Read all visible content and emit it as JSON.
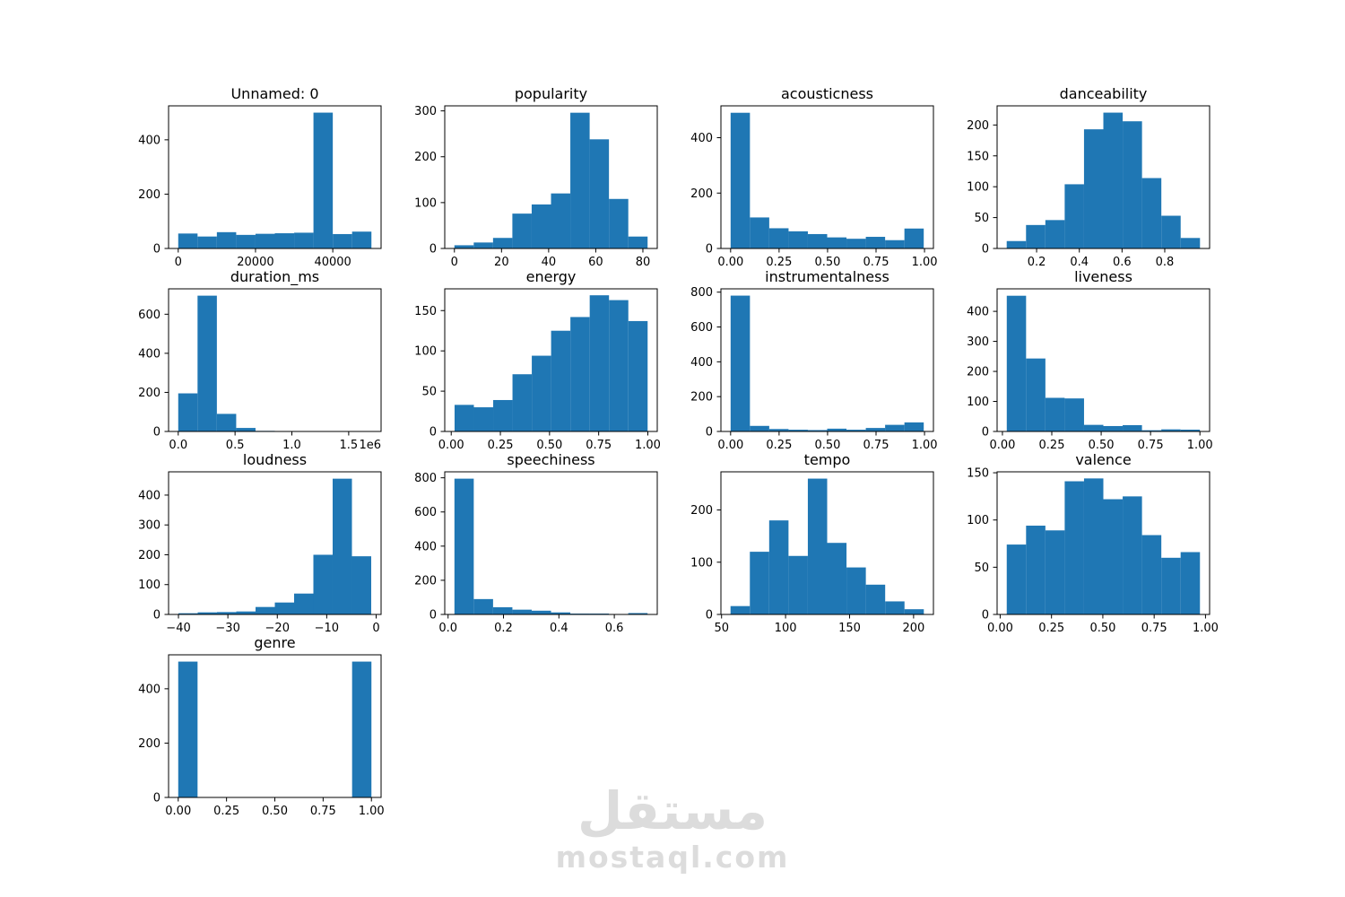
{
  "figure": {
    "background": "#ffffff",
    "bar_color": "#1f77b4",
    "axis_color": "#000000"
  },
  "watermark": {
    "arabic": "مستقل",
    "latin": "mostaql.com",
    "color": "#dcdcdc"
  },
  "chart_data": [
    {
      "type": "bar",
      "title": "Unnamed: 0",
      "row": 0,
      "col": 0,
      "bins": [
        0,
        50000
      ],
      "values": [
        55,
        44,
        60,
        50,
        54,
        56,
        58,
        500,
        53,
        62
      ],
      "xlim": [
        -2500,
        52500
      ],
      "ylim": [
        0,
        525
      ],
      "xticks": [
        {
          "v": 0,
          "label": "0"
        },
        {
          "v": 20000,
          "label": "20000"
        },
        {
          "v": 40000,
          "label": "40000"
        }
      ],
      "yticks": [
        {
          "v": 0,
          "label": "0"
        },
        {
          "v": 200,
          "label": "200"
        },
        {
          "v": 400,
          "label": "400"
        }
      ],
      "grid": false,
      "legend": null
    },
    {
      "type": "bar",
      "title": "popularity",
      "row": 0,
      "col": 1,
      "bins": [
        0,
        82
      ],
      "values": [
        7,
        13,
        23,
        76,
        96,
        120,
        296,
        238,
        108,
        26
      ],
      "xlim": [
        -4.1,
        86.1
      ],
      "ylim": [
        0,
        311
      ],
      "xticks": [
        {
          "v": 0,
          "label": "0"
        },
        {
          "v": 20,
          "label": "20"
        },
        {
          "v": 40,
          "label": "40"
        },
        {
          "v": 60,
          "label": "60"
        },
        {
          "v": 80,
          "label": "80"
        }
      ],
      "yticks": [
        {
          "v": 0,
          "label": "0"
        },
        {
          "v": 100,
          "label": "100"
        },
        {
          "v": 200,
          "label": "200"
        },
        {
          "v": 300,
          "label": "300"
        }
      ],
      "grid": false,
      "legend": null
    },
    {
      "type": "bar",
      "title": "acousticness",
      "row": 0,
      "col": 2,
      "bins": [
        0,
        0.996
      ],
      "values": [
        490,
        112,
        73,
        62,
        52,
        40,
        35,
        42,
        30,
        72
      ],
      "xlim": [
        -0.05,
        1.046
      ],
      "ylim": [
        0,
        515
      ],
      "xticks": [
        {
          "v": 0,
          "label": "0.00"
        },
        {
          "v": 0.25,
          "label": "0.25"
        },
        {
          "v": 0.5,
          "label": "0.50"
        },
        {
          "v": 0.75,
          "label": "0.75"
        },
        {
          "v": 1.0,
          "label": "1.00"
        }
      ],
      "yticks": [
        {
          "v": 0,
          "label": "0"
        },
        {
          "v": 200,
          "label": "200"
        },
        {
          "v": 400,
          "label": "400"
        }
      ],
      "grid": false,
      "legend": null
    },
    {
      "type": "bar",
      "title": "danceability",
      "row": 0,
      "col": 3,
      "bins": [
        0.06,
        0.965
      ],
      "values": [
        12,
        38,
        46,
        104,
        193,
        220,
        206,
        114,
        53,
        17
      ],
      "xlim": [
        0.015,
        1.01
      ],
      "ylim": [
        0,
        231
      ],
      "xticks": [
        {
          "v": 0.2,
          "label": "0.2"
        },
        {
          "v": 0.4,
          "label": "0.4"
        },
        {
          "v": 0.6,
          "label": "0.6"
        },
        {
          "v": 0.8,
          "label": "0.8"
        }
      ],
      "yticks": [
        {
          "v": 0,
          "label": "0"
        },
        {
          "v": 50,
          "label": "50"
        },
        {
          "v": 100,
          "label": "100"
        },
        {
          "v": 150,
          "label": "150"
        },
        {
          "v": 200,
          "label": "200"
        }
      ],
      "grid": false,
      "legend": null
    },
    {
      "type": "bar",
      "title": "duration_ms",
      "row": 1,
      "col": 0,
      "bins": [
        0,
        1700000
      ],
      "values": [
        195,
        695,
        90,
        18,
        3,
        0,
        0,
        0,
        0,
        2
      ],
      "xlim": [
        -85000,
        1785000
      ],
      "ylim": [
        0,
        730
      ],
      "xticks": [
        {
          "v": 0,
          "label": "0.0"
        },
        {
          "v": 500000,
          "label": "0.5"
        },
        {
          "v": 1000000,
          "label": "1.0"
        },
        {
          "v": 1500000,
          "label": "1.5"
        }
      ],
      "yticks": [
        {
          "v": 0,
          "label": "0"
        },
        {
          "v": 200,
          "label": "200"
        },
        {
          "v": 400,
          "label": "400"
        },
        {
          "v": 600,
          "label": "600"
        }
      ],
      "offset_label": "1e6",
      "grid": false,
      "legend": null
    },
    {
      "type": "bar",
      "title": "energy",
      "row": 1,
      "col": 1,
      "bins": [
        0.017,
        0.999
      ],
      "values": [
        33,
        30,
        39,
        71,
        94,
        125,
        142,
        169,
        163,
        137
      ],
      "xlim": [
        -0.033,
        1.048
      ],
      "ylim": [
        0,
        177
      ],
      "xticks": [
        {
          "v": 0,
          "label": "0.00"
        },
        {
          "v": 0.25,
          "label": "0.25"
        },
        {
          "v": 0.5,
          "label": "0.50"
        },
        {
          "v": 0.75,
          "label": "0.75"
        },
        {
          "v": 1.0,
          "label": "1.00"
        }
      ],
      "yticks": [
        {
          "v": 0,
          "label": "0"
        },
        {
          "v": 50,
          "label": "50"
        },
        {
          "v": 100,
          "label": "100"
        },
        {
          "v": 150,
          "label": "150"
        }
      ],
      "grid": false,
      "legend": null
    },
    {
      "type": "bar",
      "title": "instrumentalness",
      "row": 1,
      "col": 2,
      "bins": [
        0,
        0.996
      ],
      "values": [
        780,
        32,
        14,
        10,
        8,
        16,
        10,
        20,
        38,
        52
      ],
      "xlim": [
        -0.05,
        1.046
      ],
      "ylim": [
        0,
        819
      ],
      "xticks": [
        {
          "v": 0,
          "label": "0.00"
        },
        {
          "v": 0.25,
          "label": "0.25"
        },
        {
          "v": 0.5,
          "label": "0.50"
        },
        {
          "v": 0.75,
          "label": "0.75"
        },
        {
          "v": 1.0,
          "label": "1.00"
        }
      ],
      "yticks": [
        {
          "v": 0,
          "label": "0"
        },
        {
          "v": 200,
          "label": "200"
        },
        {
          "v": 400,
          "label": "400"
        },
        {
          "v": 600,
          "label": "600"
        },
        {
          "v": 800,
          "label": "800"
        }
      ],
      "grid": false,
      "legend": null
    },
    {
      "type": "bar",
      "title": "liveness",
      "row": 1,
      "col": 3,
      "bins": [
        0.022,
        1.0
      ],
      "values": [
        452,
        243,
        112,
        110,
        22,
        18,
        21,
        4,
        7,
        6
      ],
      "xlim": [
        -0.027,
        1.049
      ],
      "ylim": [
        0,
        475
      ],
      "xticks": [
        {
          "v": 0,
          "label": "0.00"
        },
        {
          "v": 0.25,
          "label": "0.25"
        },
        {
          "v": 0.5,
          "label": "0.50"
        },
        {
          "v": 0.75,
          "label": "0.75"
        },
        {
          "v": 1.0,
          "label": "1.00"
        }
      ],
      "yticks": [
        {
          "v": 0,
          "label": "0"
        },
        {
          "v": 100,
          "label": "100"
        },
        {
          "v": 200,
          "label": "200"
        },
        {
          "v": 300,
          "label": "300"
        },
        {
          "v": 400,
          "label": "400"
        }
      ],
      "grid": false,
      "legend": null
    },
    {
      "type": "bar",
      "title": "loudness",
      "row": 2,
      "col": 0,
      "bins": [
        -40,
        -1
      ],
      "values": [
        4,
        7,
        8,
        10,
        25,
        40,
        70,
        200,
        455,
        195
      ],
      "xlim": [
        -42,
        1
      ],
      "ylim": [
        0,
        478
      ],
      "xticks": [
        {
          "v": -40,
          "label": "−40"
        },
        {
          "v": -30,
          "label": "−30"
        },
        {
          "v": -20,
          "label": "−20"
        },
        {
          "v": -10,
          "label": "−10"
        },
        {
          "v": 0,
          "label": "0"
        }
      ],
      "yticks": [
        {
          "v": 0,
          "label": "0"
        },
        {
          "v": 100,
          "label": "100"
        },
        {
          "v": 200,
          "label": "200"
        },
        {
          "v": 300,
          "label": "300"
        },
        {
          "v": 400,
          "label": "400"
        }
      ],
      "grid": false,
      "legend": null
    },
    {
      "type": "bar",
      "title": "speechiness",
      "row": 2,
      "col": 1,
      "bins": [
        0.023,
        0.72
      ],
      "values": [
        795,
        90,
        42,
        28,
        22,
        12,
        5,
        5,
        2,
        8
      ],
      "xlim": [
        -0.012,
        0.755
      ],
      "ylim": [
        0,
        835
      ],
      "xticks": [
        {
          "v": 0,
          "label": "0.0"
        },
        {
          "v": 0.2,
          "label": "0.2"
        },
        {
          "v": 0.4,
          "label": "0.4"
        },
        {
          "v": 0.6,
          "label": "0.6"
        }
      ],
      "yticks": [
        {
          "v": 0,
          "label": "0"
        },
        {
          "v": 200,
          "label": "200"
        },
        {
          "v": 400,
          "label": "400"
        },
        {
          "v": 600,
          "label": "600"
        },
        {
          "v": 800,
          "label": "800"
        }
      ],
      "grid": false,
      "legend": null
    },
    {
      "type": "bar",
      "title": "tempo",
      "row": 2,
      "col": 2,
      "bins": [
        57,
        208
      ],
      "values": [
        16,
        120,
        180,
        112,
        260,
        137,
        90,
        57,
        25,
        10
      ],
      "xlim": [
        49.5,
        215.5
      ],
      "ylim": [
        0,
        273
      ],
      "xticks": [
        {
          "v": 50,
          "label": "50"
        },
        {
          "v": 100,
          "label": "100"
        },
        {
          "v": 150,
          "label": "150"
        },
        {
          "v": 200,
          "label": "200"
        }
      ],
      "yticks": [
        {
          "v": 0,
          "label": "0"
        },
        {
          "v": 100,
          "label": "100"
        },
        {
          "v": 200,
          "label": "200"
        }
      ],
      "grid": false,
      "legend": null
    },
    {
      "type": "bar",
      "title": "valence",
      "row": 2,
      "col": 3,
      "bins": [
        0.032,
        0.973
      ],
      "values": [
        74,
        94,
        89,
        141,
        144,
        122,
        125,
        84,
        60,
        66
      ],
      "xlim": [
        -0.015,
        1.02
      ],
      "ylim": [
        0,
        151
      ],
      "xticks": [
        {
          "v": 0,
          "label": "0.00"
        },
        {
          "v": 0.25,
          "label": "0.25"
        },
        {
          "v": 0.5,
          "label": "0.50"
        },
        {
          "v": 0.75,
          "label": "0.75"
        },
        {
          "v": 1.0,
          "label": "1.00"
        }
      ],
      "yticks": [
        {
          "v": 0,
          "label": "0"
        },
        {
          "v": 50,
          "label": "50"
        },
        {
          "v": 100,
          "label": "100"
        },
        {
          "v": 150,
          "label": "150"
        }
      ],
      "grid": false,
      "legend": null
    },
    {
      "type": "bar",
      "title": "genre",
      "row": 3,
      "col": 0,
      "bins": [
        0,
        1
      ],
      "values": [
        500,
        0,
        0,
        0,
        0,
        0,
        0,
        0,
        0,
        500
      ],
      "xlim": [
        -0.05,
        1.05
      ],
      "ylim": [
        0,
        525
      ],
      "xticks": [
        {
          "v": 0,
          "label": "0.00"
        },
        {
          "v": 0.25,
          "label": "0.25"
        },
        {
          "v": 0.5,
          "label": "0.50"
        },
        {
          "v": 0.75,
          "label": "0.75"
        },
        {
          "v": 1.0,
          "label": "1.00"
        }
      ],
      "yticks": [
        {
          "v": 0,
          "label": "0"
        },
        {
          "v": 200,
          "label": "200"
        },
        {
          "v": 400,
          "label": "400"
        }
      ],
      "grid": false,
      "legend": null
    }
  ]
}
